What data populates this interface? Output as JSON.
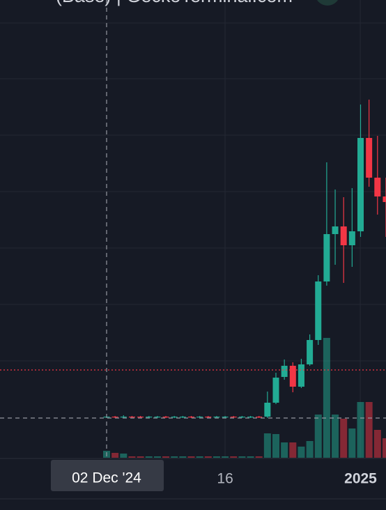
{
  "chart_data": {
    "type": "candlestick",
    "title": "(Base) | GeckoTerminal.com",
    "categories": [
      "02 Dec '24",
      null,
      null,
      null,
      null,
      null,
      null,
      null,
      null,
      null,
      null,
      null,
      null,
      null,
      "16",
      null,
      null,
      null,
      null,
      null,
      null,
      null,
      null,
      null,
      null,
      null,
      null,
      null,
      null,
      null,
      "2025",
      null,
      null,
      null
    ],
    "open": [
      61,
      62,
      61,
      62,
      62,
      61,
      61,
      62,
      61,
      61,
      62,
      61,
      62,
      61,
      61,
      62,
      61,
      61,
      62,
      62,
      82,
      119,
      135,
      105,
      137,
      172,
      256,
      324,
      335,
      308,
      328,
      462,
      405,
      378
    ],
    "high": [
      63,
      63,
      64,
      63,
      63,
      63,
      63,
      63,
      63,
      63,
      63,
      63,
      63,
      63,
      63,
      63,
      63,
      63,
      63,
      98,
      125,
      144,
      140,
      145,
      180,
      265,
      427,
      388,
      377,
      390,
      510,
      517,
      465,
      405
    ],
    "low": [
      60,
      60,
      60,
      60,
      60,
      60,
      60,
      60,
      60,
      60,
      60,
      60,
      60,
      60,
      60,
      60,
      60,
      60,
      60,
      60,
      80,
      115,
      97,
      103,
      135,
      165,
      250,
      280,
      254,
      277,
      320,
      392,
      352,
      320
    ],
    "close": [
      62,
      61,
      62,
      61,
      61,
      62,
      62,
      61,
      62,
      62,
      61,
      62,
      61,
      62,
      62,
      61,
      62,
      62,
      61,
      82,
      118,
      135,
      105,
      137,
      172,
      256,
      324,
      335,
      308,
      328,
      462,
      405,
      378,
      370
    ],
    "volume": [
      10,
      7,
      6,
      2,
      2,
      2,
      2,
      2,
      2,
      2,
      2,
      2,
      2,
      2,
      2,
      2,
      2,
      2,
      2,
      35,
      34,
      22,
      22,
      16,
      24,
      62,
      172,
      62,
      56,
      42,
      80,
      80,
      40,
      28
    ],
    "up_color": "#22ab94",
    "down_color": "#f23645",
    "ylim": [
      0,
      660
    ],
    "volume_ylim": [
      0,
      660
    ]
  }
}
